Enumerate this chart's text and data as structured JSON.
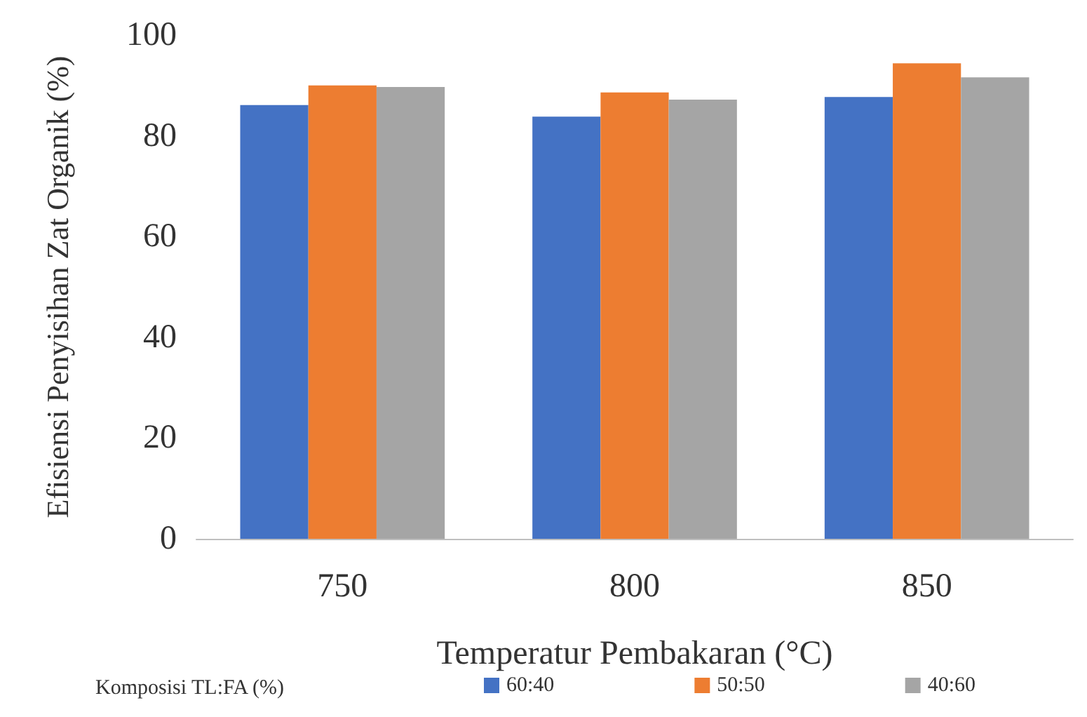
{
  "chart_data": {
    "type": "bar",
    "xlabel": "Temperatur Pembakaran (°C)",
    "ylabel": "Efisiensi Penyisihan Zat Organik (%)",
    "legend_title": "Komposisi TL:FA (%)",
    "categories": [
      "750",
      "800",
      "850"
    ],
    "series": [
      {
        "name": "60:40",
        "color": "#4472c4",
        "values": [
          86.1,
          83.8,
          87.7
        ]
      },
      {
        "name": "50:50",
        "color": "#ed7d31",
        "values": [
          90.0,
          88.6,
          94.4
        ]
      },
      {
        "name": "40:60",
        "color": "#a5a5a5",
        "values": [
          89.7,
          87.2,
          91.6
        ]
      }
    ],
    "ylim": [
      0,
      100
    ],
    "yticks": [
      0,
      20,
      40,
      60,
      80,
      100
    ],
    "grid": false,
    "legend": "bottom"
  }
}
